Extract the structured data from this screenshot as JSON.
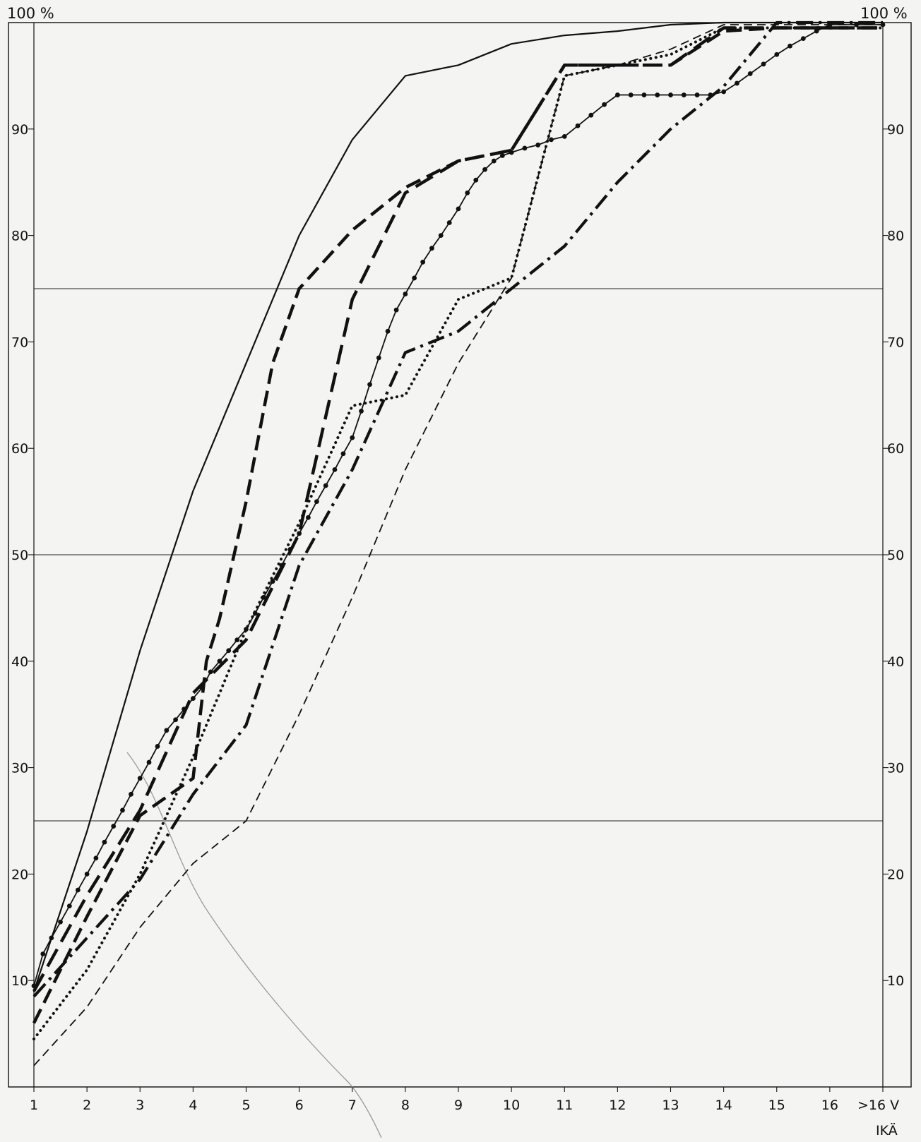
{
  "chart_data": {
    "type": "line",
    "title": "",
    "x_tick_labels": [
      "1",
      "2",
      "3",
      "4",
      "5",
      "6",
      "7",
      "8",
      "9",
      "10",
      "11",
      "12",
      "13",
      "14",
      "15",
      "16",
      ">16 V"
    ],
    "x_axis_label": "IKÄ",
    "y_top_label_left": "100 %",
    "y_top_label_right": "100 %",
    "y_ticks": [
      10,
      20,
      30,
      40,
      50,
      60,
      70,
      80,
      90
    ],
    "ylim": [
      0,
      100
    ],
    "xlim": [
      1,
      17
    ],
    "reference_lines": [
      25,
      50,
      75
    ],
    "series": [
      {
        "style": "solid",
        "x": [
          1,
          2,
          3,
          4,
          5,
          6,
          7,
          8,
          9,
          10,
          11,
          12,
          13,
          14,
          15,
          16,
          17
        ],
        "values": [
          9,
          24,
          41,
          56,
          68,
          80,
          89,
          95,
          96,
          98,
          98.8,
          99.2,
          99.8,
          100,
          100,
          100,
          100
        ]
      },
      {
        "style": "long-dash",
        "x": [
          1,
          2,
          3,
          4,
          5,
          6,
          7,
          8,
          9,
          10,
          11,
          12,
          13,
          14,
          15,
          16,
          17
        ],
        "values": [
          9,
          18,
          26,
          37,
          42,
          52,
          74,
          84,
          87,
          88,
          96,
          96,
          96,
          99.5,
          99.5,
          99.5,
          99.5
        ]
      },
      {
        "style": "heavy-dash",
        "x": [
          1,
          2,
          3,
          4,
          4.25,
          4.5,
          5,
          5.5,
          6,
          7,
          8,
          9,
          10,
          11,
          12,
          13,
          14,
          15,
          16,
          17
        ],
        "values": [
          6,
          16,
          25.5,
          29,
          40,
          44,
          55,
          68,
          75,
          80.5,
          84.5,
          87,
          88,
          96,
          96,
          96,
          99.2,
          99.5,
          99.5,
          99.5
        ]
      },
      {
        "style": "dash-dot",
        "x": [
          1,
          2,
          3,
          4,
          5,
          6,
          7,
          8,
          9,
          10,
          11,
          12,
          13,
          14,
          15,
          16,
          17
        ],
        "values": [
          8.5,
          14,
          19.5,
          27.5,
          34,
          49,
          58,
          69,
          71,
          75,
          79,
          85,
          90,
          94,
          100,
          100,
          100
        ]
      },
      {
        "style": "dotted",
        "x": [
          1,
          2,
          3,
          4,
          5,
          6,
          7,
          8,
          9,
          10,
          11,
          12,
          13,
          14,
          15,
          16,
          17
        ],
        "values": [
          4.5,
          11,
          20,
          31,
          43,
          53,
          64,
          65,
          74,
          76,
          95,
          96,
          97,
          99.5,
          99.5,
          99.5,
          99.5
        ]
      },
      {
        "style": "thin-dash",
        "x": [
          1,
          2,
          3,
          4,
          5,
          6,
          7,
          8,
          9,
          10,
          11,
          12,
          13,
          14,
          15,
          16,
          17
        ],
        "values": [
          2,
          7.5,
          15,
          21,
          25,
          35,
          46,
          58,
          68,
          76,
          95,
          96,
          97.5,
          99.8,
          99.8,
          99.8,
          99.8
        ]
      },
      {
        "style": "solid-with-dots",
        "x": [
          1,
          1.17,
          1.33,
          1.5,
          1.67,
          1.83,
          2,
          2.17,
          2.33,
          2.5,
          2.67,
          2.83,
          3,
          3.17,
          3.33,
          3.5,
          3.67,
          3.83,
          4,
          4.17,
          4.33,
          4.5,
          4.67,
          4.83,
          5,
          5.17,
          5.33,
          5.5,
          5.67,
          5.83,
          6,
          6.17,
          6.33,
          6.5,
          6.67,
          6.83,
          7,
          7.17,
          7.33,
          7.5,
          7.67,
          7.83,
          8,
          8.17,
          8.33,
          8.5,
          8.67,
          8.83,
          9,
          9.17,
          9.33,
          9.5,
          9.67,
          9.83,
          10,
          10.25,
          10.5,
          10.75,
          11,
          11.25,
          11.5,
          11.75,
          12,
          12.25,
          12.5,
          12.75,
          13,
          13.25,
          13.5,
          13.75,
          14,
          14.25,
          14.5,
          14.75,
          15,
          15.25,
          15.5,
          15.75,
          16,
          16.5,
          17
        ],
        "values": [
          9.5,
          12.5,
          14,
          15.5,
          17,
          18.5,
          20,
          21.5,
          23,
          24.5,
          26,
          27.5,
          29,
          30.5,
          32,
          33.5,
          34.5,
          35.5,
          36.5,
          37.5,
          39,
          40,
          41,
          42,
          43,
          44.5,
          46,
          47.5,
          49,
          50.5,
          52,
          53.5,
          55,
          56.5,
          58,
          59.5,
          61,
          63.5,
          66,
          68.5,
          71,
          73,
          74.5,
          76,
          77.5,
          78.8,
          80,
          81.2,
          82.5,
          84,
          85.2,
          86.2,
          87,
          87.5,
          87.8,
          88.2,
          88.5,
          89,
          89.3,
          90.3,
          91.3,
          92.3,
          93.2,
          93.2,
          93.2,
          93.2,
          93.2,
          93.2,
          93.2,
          93.2,
          93.5,
          94.3,
          95.2,
          96.1,
          97,
          97.8,
          98.5,
          99.2,
          99.8,
          99.8,
          99.8
        ]
      }
    ]
  }
}
